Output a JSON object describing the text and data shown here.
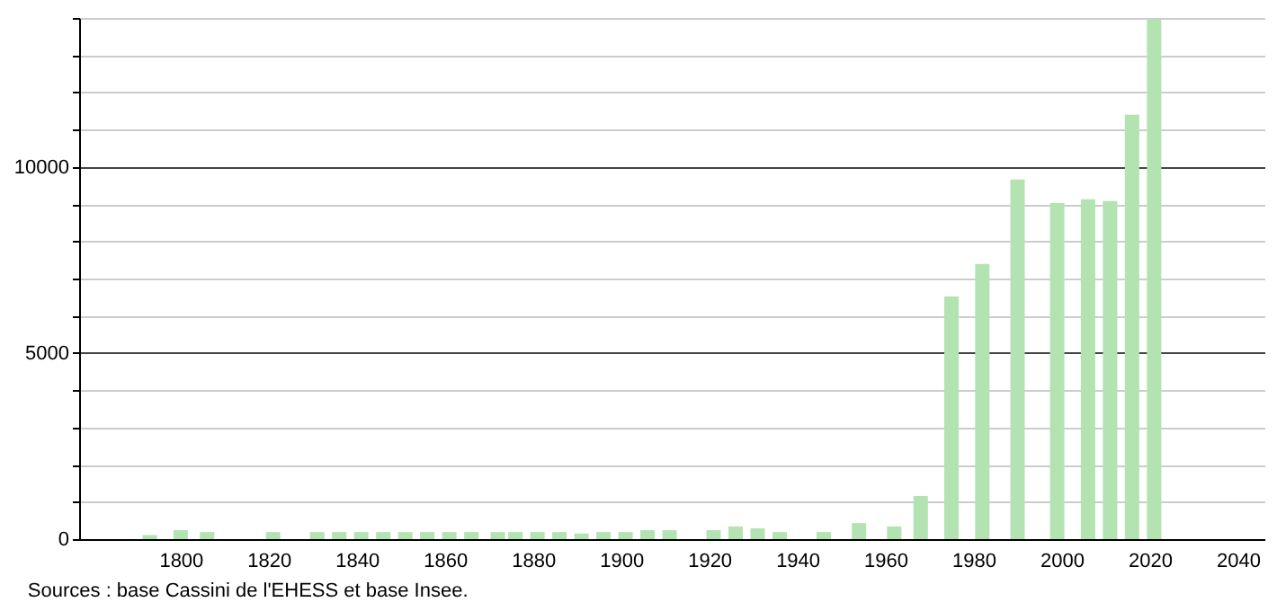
{
  "chart_data": {
    "type": "bar",
    "annotations": [
      "Sources : base Cassini de l'EHESS et base Insee."
    ],
    "x": [
      1793,
      1800,
      1806,
      1821,
      1831,
      1836,
      1841,
      1846,
      1851,
      1856,
      1861,
      1866,
      1872,
      1876,
      1881,
      1886,
      1891,
      1896,
      1901,
      1906,
      1911,
      1921,
      1926,
      1931,
      1936,
      1946,
      1954,
      1962,
      1968,
      1975,
      1982,
      1990,
      1999,
      2006,
      2011,
      2016,
      2021
    ],
    "values": [
      110,
      240,
      190,
      190,
      190,
      190,
      190,
      190,
      190,
      190,
      190,
      190,
      190,
      190,
      190,
      190,
      150,
      190,
      190,
      240,
      240,
      240,
      340,
      290,
      190,
      190,
      430,
      340,
      1160,
      6520,
      7390,
      9660,
      9030,
      9130,
      9080,
      11400,
      13960
    ],
    "color": "#b3e3b1",
    "xlim": [
      1779,
      2044
    ],
    "xticks": [
      1800,
      1820,
      1840,
      1860,
      1880,
      1900,
      1920,
      1940,
      1960,
      1980,
      2000,
      2020,
      2040
    ],
    "ylim": [
      0,
      14000
    ],
    "yticks": [
      0,
      {
        "value": 1000,
        "label": null
      },
      {
        "value": 2000,
        "label": null
      },
      {
        "value": 3000,
        "label": null
      },
      {
        "value": 4000,
        "label": null
      },
      5000,
      {
        "value": 6000,
        "label": null
      },
      {
        "value": 7000,
        "label": null
      },
      {
        "value": 8000,
        "label": null
      },
      {
        "value": 9000,
        "label": null
      },
      10000,
      {
        "value": 11000,
        "label": null
      },
      {
        "value": 12000,
        "label": null
      },
      {
        "value": 13000,
        "label": null
      },
      {
        "value": 14000,
        "label": null
      }
    ],
    "grid": "y"
  }
}
